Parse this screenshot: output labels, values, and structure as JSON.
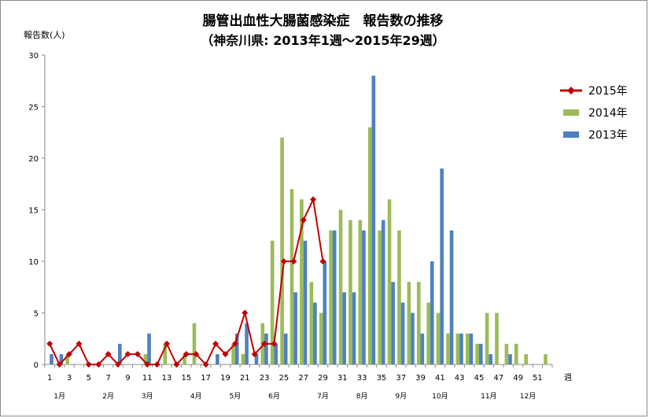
{
  "chart_data": {
    "type": "bar",
    "title": "腸管出血性大腸菌感染症　報告数の推移",
    "subtitle": "（神奈川県: 2013年1週～2015年29週）",
    "ylabel": "報告数(人)",
    "xlabel": "週",
    "ylim": [
      0,
      30
    ],
    "y_ticks": [
      0,
      5,
      10,
      15,
      20,
      25,
      30
    ],
    "x_tick_labels": [
      "1",
      "3",
      "5",
      "7",
      "9",
      "11",
      "13",
      "15",
      "17",
      "19",
      "21",
      "23",
      "25",
      "27",
      "29",
      "31",
      "33",
      "35",
      "37",
      "39",
      "41",
      "43",
      "45",
      "47",
      "49",
      "51"
    ],
    "month_labels": [
      {
        "label": "1月",
        "week": 2
      },
      {
        "label": "2月",
        "week": 7
      },
      {
        "label": "3月",
        "week": 11
      },
      {
        "label": "4月",
        "week": 16
      },
      {
        "label": "5月",
        "week": 20
      },
      {
        "label": "6月",
        "week": 24
      },
      {
        "label": "7月",
        "week": 29
      },
      {
        "label": "8月",
        "week": 33
      },
      {
        "label": "9月",
        "week": 37
      },
      {
        "label": "10月",
        "week": 41
      },
      {
        "label": "11月",
        "week": 46
      },
      {
        "label": "12月",
        "week": 50
      }
    ],
    "weeks": 52,
    "series": [
      {
        "name": "2015年",
        "type": "line",
        "color": "#c00000",
        "values": [
          2,
          0,
          1,
          2,
          0,
          0,
          1,
          0,
          1,
          1,
          0,
          0,
          2,
          0,
          1,
          1,
          0,
          2,
          1,
          2,
          5,
          1,
          2,
          2,
          10,
          10,
          14,
          16,
          10
        ]
      },
      {
        "name": "2014年",
        "type": "bar",
        "color": "#9bbb59",
        "values": [
          0,
          0,
          1,
          0,
          0,
          0,
          0,
          0,
          0,
          0,
          1,
          0,
          2,
          0,
          1,
          4,
          0,
          0,
          0,
          2,
          1,
          0,
          4,
          12,
          22,
          17,
          16,
          8,
          5,
          13,
          15,
          14,
          14,
          23,
          13,
          16,
          13,
          8,
          8,
          6,
          5,
          3,
          3,
          3,
          2,
          5,
          5,
          2,
          2,
          1,
          0,
          1
        ]
      },
      {
        "name": "2013年",
        "type": "bar",
        "color": "#4f81bd",
        "values": [
          1,
          1,
          0,
          0,
          0,
          0,
          0,
          2,
          0,
          0,
          3,
          0,
          0,
          0,
          0,
          0,
          0,
          1,
          0,
          3,
          4,
          1,
          3,
          2,
          3,
          7,
          12,
          6,
          10,
          13,
          7,
          7,
          13,
          28,
          14,
          8,
          6,
          5,
          3,
          10,
          19,
          13,
          3,
          3,
          2,
          1,
          0,
          1,
          0,
          0,
          0,
          0
        ]
      }
    ],
    "legend_position": "right",
    "grid": false
  }
}
